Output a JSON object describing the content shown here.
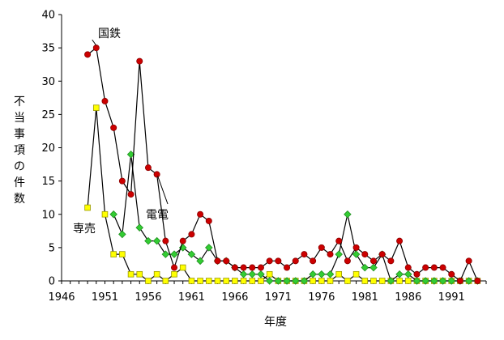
{
  "chart_data": {
    "type": "line",
    "xlabel": "年度",
    "ylabel": "不当事項の件数",
    "xlim": [
      1946,
      1995
    ],
    "ylim": [
      0,
      40
    ],
    "xticks": [
      1946,
      1951,
      1956,
      1961,
      1966,
      1971,
      1976,
      1981,
      1986,
      1991
    ],
    "yticks": [
      0,
      5,
      10,
      15,
      20,
      25,
      30,
      35,
      40
    ],
    "grid": false,
    "legend": "none",
    "x": [
      1949,
      1950,
      1951,
      1952,
      1953,
      1954,
      1955,
      1956,
      1957,
      1958,
      1959,
      1960,
      1961,
      1962,
      1963,
      1964,
      1965,
      1966,
      1967,
      1968,
      1969,
      1970,
      1971,
      1972,
      1973,
      1974,
      1975,
      1976,
      1977,
      1978,
      1979,
      1980,
      1981,
      1982,
      1983,
      1984,
      1985,
      1986,
      1987,
      1988,
      1989,
      1990,
      1991,
      1992,
      1993,
      1994
    ],
    "series": [
      {
        "name": "国鉄",
        "color": "#cc0000",
        "marker": "circle",
        "x": [
          1949,
          1950,
          1951,
          1952,
          1953,
          1954,
          1955,
          1956,
          1957,
          1958,
          1959,
          1960,
          1961,
          1962,
          1963,
          1964,
          1965,
          1966,
          1967,
          1968,
          1969,
          1970,
          1971,
          1972,
          1973,
          1974,
          1975,
          1976,
          1977,
          1978,
          1979,
          1980,
          1981,
          1982,
          1983,
          1984,
          1985,
          1986,
          1987,
          1988,
          1989,
          1990,
          1991,
          1992,
          1993,
          1994
        ],
        "values": [
          34,
          35,
          27,
          23,
          15,
          13,
          33,
          17,
          16,
          6,
          2,
          6,
          7,
          10,
          9,
          3,
          3,
          2,
          2,
          2,
          2,
          3,
          3,
          2,
          3,
          4,
          3,
          5,
          4,
          6,
          3,
          5,
          4,
          3,
          4,
          3,
          6,
          2,
          1,
          2,
          2,
          2,
          1,
          0,
          3,
          0
        ]
      },
      {
        "name": "電電",
        "color": "#33cc33",
        "marker": "diamond",
        "x": [
          1952,
          1953,
          1954,
          1955,
          1956,
          1957,
          1958,
          1959,
          1960,
          1961,
          1962,
          1963,
          1964,
          1965,
          1966,
          1967,
          1968,
          1969,
          1970,
          1971,
          1972,
          1973,
          1974,
          1975,
          1976,
          1977,
          1978,
          1979,
          1980,
          1981,
          1982,
          1983,
          1984,
          1985,
          1986,
          1987,
          1988,
          1989,
          1990,
          1991,
          1992,
          1993,
          1994
        ],
        "values": [
          10,
          7,
          19,
          8,
          6,
          6,
          4,
          4,
          5,
          4,
          3,
          5,
          3,
          3,
          2,
          1,
          1,
          1,
          0,
          0,
          0,
          0,
          0,
          1,
          1,
          1,
          4,
          10,
          4,
          2,
          2,
          4,
          0,
          1,
          1,
          0,
          0,
          0,
          0,
          0,
          0,
          0,
          0
        ]
      },
      {
        "name": "専売",
        "color": "#ffff00",
        "marker": "square",
        "x": [
          1949,
          1950,
          1951,
          1952,
          1953,
          1954,
          1955,
          1956,
          1957,
          1958,
          1959,
          1960,
          1961,
          1962,
          1963,
          1964,
          1965,
          1966,
          1967,
          1968,
          1969,
          1970,
          1971,
          1972,
          1973,
          1974,
          1975,
          1976,
          1977,
          1978,
          1979,
          1980,
          1981,
          1982,
          1983,
          1984,
          1985,
          1986,
          1987,
          1988,
          1989,
          1990,
          1991,
          1992,
          1993,
          1994
        ],
        "values": [
          11,
          26,
          10,
          4,
          4,
          1,
          1,
          0,
          1,
          0,
          1,
          2,
          0,
          0,
          0,
          0,
          0,
          0,
          0,
          0,
          0,
          1,
          0,
          0,
          0,
          0,
          0,
          0,
          0,
          1,
          0,
          1,
          0,
          0,
          0,
          0,
          0,
          0,
          0,
          0,
          0,
          0,
          0,
          0,
          0,
          0
        ]
      }
    ]
  }
}
